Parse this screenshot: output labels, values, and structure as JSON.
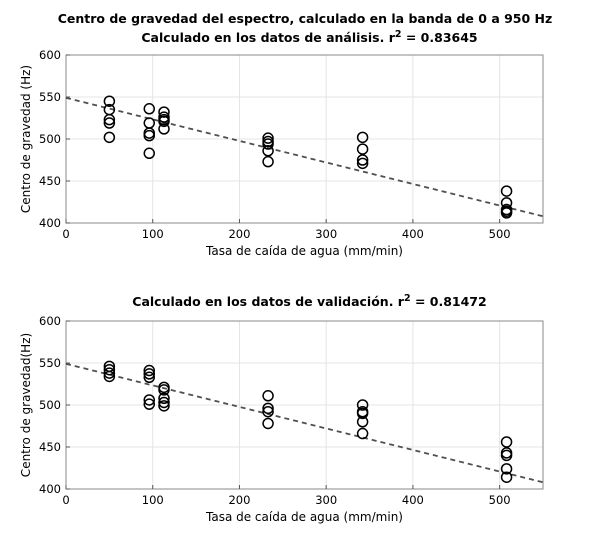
{
  "figure": {
    "title_line1": "Centro de gravedad del espectro, calculado en la banda de 0 a 950 Hz"
  },
  "chart_data": [
    {
      "type": "scatter",
      "title_prefix": "Calculado en los datos de análisis. r",
      "title_sup": "2",
      "title_suffix": " = 0.83645",
      "xlabel": "Tasa de caída de agua (mm/min)",
      "ylabel": "Centro de gravedad (Hz)",
      "xlim": [
        0,
        550
      ],
      "ylim": [
        400,
        600
      ],
      "xticks": [
        0,
        100,
        200,
        300,
        400,
        500
      ],
      "yticks": [
        400,
        450,
        500,
        550,
        600
      ],
      "grid": true,
      "trend_line": {
        "x": [
          0,
          550
        ],
        "y": [
          549,
          408
        ],
        "style": "dashed"
      },
      "points": [
        [
          50,
          545
        ],
        [
          50,
          535
        ],
        [
          50,
          523
        ],
        [
          50,
          519
        ],
        [
          50,
          502
        ],
        [
          96,
          536
        ],
        [
          96,
          519
        ],
        [
          96,
          507
        ],
        [
          96,
          504
        ],
        [
          96,
          483
        ],
        [
          113,
          532
        ],
        [
          113,
          526
        ],
        [
          113,
          523
        ],
        [
          113,
          521
        ],
        [
          113,
          512
        ],
        [
          233,
          501
        ],
        [
          233,
          497
        ],
        [
          233,
          494
        ],
        [
          233,
          486
        ],
        [
          233,
          473
        ],
        [
          342,
          502
        ],
        [
          342,
          488
        ],
        [
          342,
          475
        ],
        [
          342,
          471
        ],
        [
          508,
          438
        ],
        [
          508,
          424
        ],
        [
          508,
          416
        ],
        [
          508,
          414
        ],
        [
          508,
          412
        ]
      ]
    },
    {
      "type": "scatter",
      "title_prefix": "Calculado en los datos de validación. r",
      "title_sup": "2",
      "title_suffix": " = 0.81472",
      "xlabel": "Tasa de caída de agua (mm/min)",
      "ylabel": "Centro de gravedad(Hz)",
      "xlim": [
        0,
        550
      ],
      "ylim": [
        400,
        600
      ],
      "xticks": [
        0,
        100,
        200,
        300,
        400,
        500
      ],
      "yticks": [
        400,
        450,
        500,
        550,
        600
      ],
      "grid": true,
      "trend_line": {
        "x": [
          0,
          550
        ],
        "y": [
          549,
          408
        ],
        "style": "dashed"
      },
      "points": [
        [
          50,
          546
        ],
        [
          50,
          542
        ],
        [
          50,
          538
        ],
        [
          50,
          534
        ],
        [
          96,
          541
        ],
        [
          96,
          537
        ],
        [
          96,
          533
        ],
        [
          96,
          506
        ],
        [
          96,
          501
        ],
        [
          113,
          521
        ],
        [
          113,
          518
        ],
        [
          113,
          508
        ],
        [
          113,
          503
        ],
        [
          113,
          499
        ],
        [
          233,
          511
        ],
        [
          233,
          496
        ],
        [
          233,
          492
        ],
        [
          233,
          478
        ],
        [
          342,
          500
        ],
        [
          342,
          492
        ],
        [
          342,
          490
        ],
        [
          342,
          480
        ],
        [
          342,
          466
        ],
        [
          508,
          456
        ],
        [
          508,
          443
        ],
        [
          508,
          440
        ],
        [
          508,
          424
        ],
        [
          508,
          414
        ]
      ]
    }
  ]
}
